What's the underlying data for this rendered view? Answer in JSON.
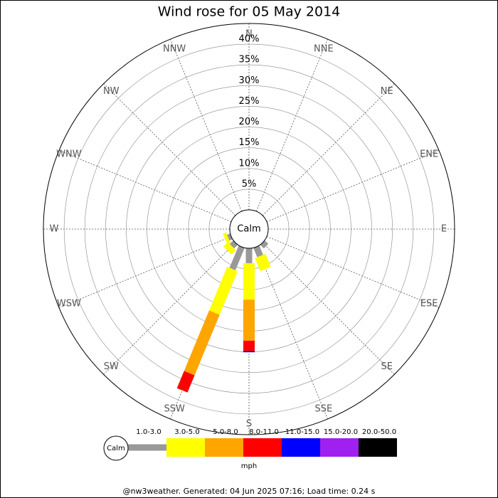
{
  "chart_data": {
    "type": "windrose",
    "title": "Wind rose for 05 May 2014",
    "calm_label": "Calm",
    "unit": "mph",
    "footer": "@nw3weather. Generated: 04 Jun 2025 07:16; Load time: 0.24 s",
    "categories": [
      "N",
      "NNE",
      "NE",
      "ENE",
      "E",
      "ESE",
      "SE",
      "SSE",
      "S",
      "SSW",
      "SW",
      "WSW",
      "W",
      "WNW",
      "NW",
      "NNW"
    ],
    "ylim": [
      0,
      45
    ],
    "yticks": [
      {
        "value": 5,
        "label": "5%"
      },
      {
        "value": 10,
        "label": "10%"
      },
      {
        "value": 15,
        "label": "15%"
      },
      {
        "value": 20,
        "label": "20%"
      },
      {
        "value": 25,
        "label": "25%"
      },
      {
        "value": 30,
        "label": "30%"
      },
      {
        "value": 35,
        "label": "35%"
      },
      {
        "value": 40,
        "label": "40%"
      }
    ],
    "series": [
      {
        "name": "1.0-3.0",
        "color": "#999999",
        "values": [
          0,
          0,
          0,
          0,
          0,
          0,
          1.2,
          2.4,
          3.6,
          5.8,
          1.2,
          0.8,
          0,
          0,
          0,
          0
        ]
      },
      {
        "name": "3.0-5.0",
        "color": "#ffff00",
        "values": [
          0,
          0,
          0,
          0,
          0,
          0,
          0,
          3.4,
          8.8,
          11.4,
          1.5,
          0.8,
          0,
          0,
          0,
          0
        ]
      },
      {
        "name": "5.0-8.0",
        "color": "#ffa500",
        "values": [
          0,
          0,
          0,
          0,
          0,
          0,
          0,
          0,
          9.9,
          15.8,
          0,
          0,
          0,
          0,
          0,
          0
        ]
      },
      {
        "name": "8.0-11.0",
        "color": "#ff0000",
        "values": [
          0,
          0,
          0,
          0,
          0,
          0,
          0,
          0,
          2.5,
          4.5,
          0,
          0,
          0,
          0,
          0,
          0
        ]
      },
      {
        "name": "11.0-15.0",
        "color": "#0000ff",
        "values": [
          0,
          0,
          0,
          0,
          0,
          0,
          0,
          0,
          0.3,
          0,
          0,
          0,
          0,
          0,
          0,
          0
        ]
      },
      {
        "name": "15.0-20.0",
        "color": "#a020f0",
        "values": [
          0,
          0,
          0,
          0,
          0,
          0,
          0,
          0,
          0,
          0,
          0,
          0,
          0,
          0,
          0,
          0
        ]
      },
      {
        "name": "20.0-50.0",
        "color": "#000000",
        "values": [
          0,
          0,
          0,
          0,
          0,
          0,
          0,
          0,
          0,
          0,
          0,
          0,
          0,
          0,
          0,
          0
        ]
      }
    ]
  }
}
